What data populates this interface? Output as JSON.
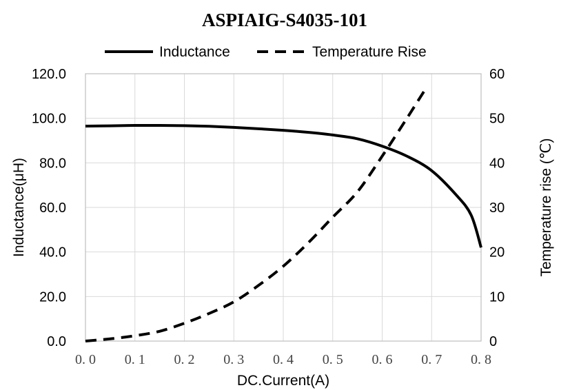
{
  "chart_data": {
    "type": "line",
    "title": "ASPIAIG-S4035-101",
    "xlabel": "DC.Current(A)",
    "ylabel": "Inductance(μH)",
    "y2label": "Temperature rise (℃)",
    "xlim": [
      0.0,
      0.8
    ],
    "ylim": [
      0.0,
      120.0
    ],
    "y2lim": [
      0,
      60
    ],
    "x_ticks": [
      "0. 0",
      "0. 1",
      "0. 2",
      "0. 3",
      "0. 4",
      "0. 5",
      "0. 6",
      "0. 7",
      "0. 8"
    ],
    "y_ticks": [
      "0.0",
      "20.0",
      "40.0",
      "60.0",
      "80.0",
      "100.0",
      "120.0"
    ],
    "y2_ticks": [
      "0",
      "10",
      "20",
      "30",
      "40",
      "50",
      "60"
    ],
    "grid": true,
    "legend_position": "top",
    "series": [
      {
        "name": "Inductance",
        "axis": "left",
        "style": "solid",
        "color": "#000000",
        "x": [
          0.0,
          0.05,
          0.1,
          0.15,
          0.2,
          0.25,
          0.3,
          0.35,
          0.4,
          0.45,
          0.5,
          0.55,
          0.6,
          0.65,
          0.7,
          0.75,
          0.78,
          0.8
        ],
        "y": [
          96.5,
          96.6,
          96.8,
          96.8,
          96.7,
          96.4,
          95.9,
          95.3,
          94.6,
          93.7,
          92.5,
          90.8,
          87.5,
          83.0,
          76.5,
          65.5,
          56.5,
          42.0
        ]
      },
      {
        "name": "Temperature Rise",
        "axis": "right",
        "style": "dashed",
        "color": "#000000",
        "x": [
          0.0,
          0.05,
          0.1,
          0.15,
          0.2,
          0.25,
          0.3,
          0.35,
          0.4,
          0.45,
          0.5,
          0.55,
          0.6,
          0.65,
          0.69
        ],
        "y": [
          0.0,
          0.5,
          1.2,
          2.2,
          4.0,
          6.2,
          8.8,
          12.5,
          16.8,
          22.0,
          27.8,
          33.5,
          41.5,
          50.0,
          57.0
        ]
      }
    ]
  }
}
